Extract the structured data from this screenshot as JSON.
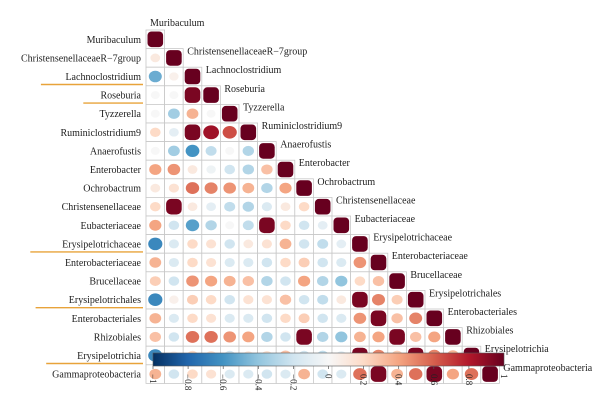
{
  "chart_data": {
    "type": "heatmap",
    "variant": "correlation-matrix-lower-triangle",
    "variables": [
      "Muribaculum",
      "ChristensenellaceaeR−7group",
      "Lachnoclostridium",
      "Roseburia",
      "Tyzzerella",
      "Ruminiclostridium9",
      "Anaerofustis",
      "Enterobacter",
      "Ochrobactrum",
      "Christensenellaceae",
      "Eubacteriaceae",
      "Erysipelotrichaceae",
      "Enterobacteriaceae",
      "Brucellaceae",
      "Erysipelotrichales",
      "Enterobacteriales",
      "Rhizobiales",
      "Erysipelotrichia",
      "Gammaproteobacteria"
    ],
    "underlined_labels": [
      "Lachnoclostridium",
      "Roseburia",
      "Erysipelotrichaceae",
      "Erysipelotrichales",
      "Erysipelotrichia"
    ],
    "matrix_lower": [
      [
        1
      ],
      [
        0.1,
        1
      ],
      [
        -0.5,
        0.05,
        1
      ],
      [
        0.0,
        0.0,
        0.95,
        1
      ],
      [
        0.0,
        -0.35,
        0.35,
        0.0,
        1
      ],
      [
        0.2,
        -0.1,
        0.95,
        0.85,
        0.65,
        1
      ],
      [
        0.0,
        -0.35,
        -0.6,
        -0.25,
        0.0,
        -0.3,
        1
      ],
      [
        0.4,
        0.45,
        0.1,
        -0.05,
        -0.2,
        -0.3,
        0.3,
        1
      ],
      [
        0.1,
        0.15,
        0.55,
        0.5,
        0.45,
        0.35,
        -0.3,
        0.4,
        1
      ],
      [
        0.2,
        0.95,
        0.1,
        -0.1,
        -0.25,
        -0.3,
        -0.15,
        0.1,
        0.2,
        1
      ],
      [
        0.4,
        -0.2,
        -0.55,
        -0.3,
        0.0,
        -0.25,
        0.95,
        0.2,
        -0.2,
        -0.1,
        1
      ],
      [
        -0.65,
        -0.15,
        0.2,
        0.15,
        -0.2,
        0.1,
        0.15,
        0.35,
        -0.2,
        -0.25,
        -0.1,
        1
      ],
      [
        0.35,
        -0.15,
        0.2,
        0.15,
        -0.15,
        -0.15,
        -0.2,
        0.2,
        0.25,
        -0.2,
        -0.15,
        0.45,
        1
      ],
      [
        0.25,
        -0.2,
        0.45,
        0.4,
        0.35,
        0.3,
        -0.3,
        -0.2,
        0.4,
        -0.3,
        -0.4,
        0.2,
        0.3,
        1
      ],
      [
        -0.65,
        0.05,
        0.25,
        0.2,
        -0.2,
        0.15,
        0.15,
        0.3,
        -0.2,
        -0.25,
        0.1,
        0.95,
        0.5,
        0.25,
        1
      ],
      [
        0.35,
        -0.15,
        0.2,
        0.15,
        -0.15,
        -0.15,
        -0.2,
        0.2,
        0.25,
        -0.2,
        -0.15,
        0.45,
        0.95,
        0.3,
        0.5,
        1
      ],
      [
        0.3,
        -0.2,
        0.55,
        0.55,
        0.45,
        0.4,
        -0.3,
        -0.2,
        0.95,
        -0.3,
        -0.4,
        0.35,
        0.4,
        0.95,
        0.3,
        0.4,
        1
      ],
      [
        -0.65,
        0.05,
        0.2,
        0.15,
        -0.2,
        0.1,
        0.15,
        0.3,
        -0.2,
        -0.25,
        -0.1,
        0.95,
        0.5,
        0.25,
        0.95,
        0.5,
        0.35,
        1
      ],
      [
        0.35,
        -0.2,
        0.2,
        0.15,
        -0.15,
        -0.15,
        -0.2,
        -0.15,
        0.35,
        -0.2,
        -0.15,
        0.55,
        0.95,
        0.35,
        0.55,
        0.95,
        0.4,
        0.55,
        1
      ]
    ],
    "colorbar": {
      "range": [
        -1,
        1
      ],
      "ticks": [
        -1,
        -0.8,
        -0.6,
        -0.4,
        -0.2,
        0,
        0.2,
        0.4,
        0.6,
        0.8,
        1
      ],
      "tick_labels": [
        "−1",
        "−0.8",
        "−0.6",
        "−0.4",
        "−0.2",
        "0",
        "0.2",
        "0.4",
        "0.6",
        "0.8",
        "1"
      ],
      "colors": [
        "#053061",
        "#2166ac",
        "#4393c3",
        "#92c5de",
        "#d1e5f0",
        "#f7f7f7",
        "#fddbc7",
        "#f4a582",
        "#d6604d",
        "#b2182b",
        "#67001f"
      ]
    },
    "underline_color": "#e8a33a",
    "grid": true,
    "legend_placement": "bottom"
  }
}
